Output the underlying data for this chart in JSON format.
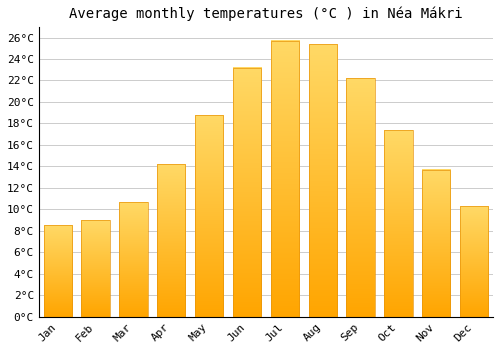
{
  "title": "Average monthly temperatures (°C ) in Néa Mákri",
  "months": [
    "Jan",
    "Feb",
    "Mar",
    "Apr",
    "May",
    "Jun",
    "Jul",
    "Aug",
    "Sep",
    "Oct",
    "Nov",
    "Dec"
  ],
  "temperatures": [
    8.5,
    9.0,
    10.7,
    14.2,
    18.8,
    23.2,
    25.7,
    25.4,
    22.2,
    17.4,
    13.7,
    10.3
  ],
  "bar_color_top": "#FFD966",
  "bar_color_bottom": "#FFA500",
  "background_color": "#ffffff",
  "grid_color": "#cccccc",
  "ylim": [
    0,
    27
  ],
  "ytick_step": 2,
  "title_fontsize": 10,
  "tick_fontsize": 8,
  "bar_width": 0.75
}
